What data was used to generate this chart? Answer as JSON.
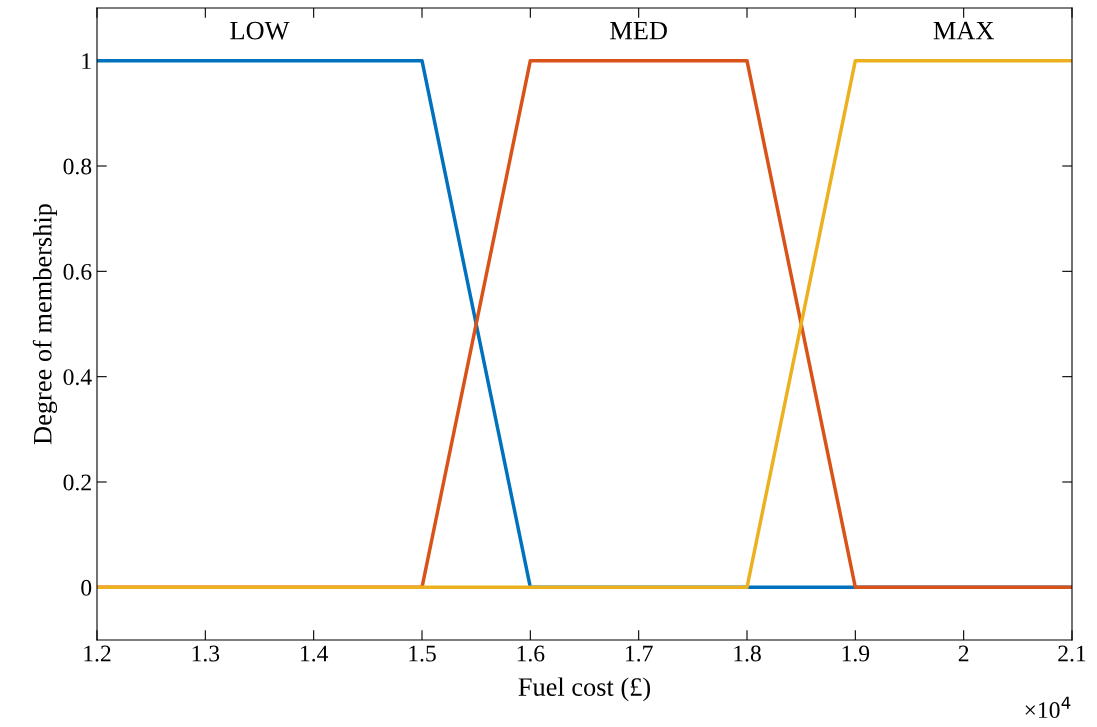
{
  "chart_data": {
    "type": "line",
    "xlabel": "Fuel cost (£)",
    "ylabel": "Degree of membership",
    "series": [
      {
        "name": "LOW",
        "color": "#0072bd",
        "x": [
          1.2,
          1.5,
          1.6,
          2.1
        ],
        "values": [
          1,
          1,
          0,
          0
        ]
      },
      {
        "name": "MED",
        "color": "#d95319",
        "x": [
          1.2,
          1.5,
          1.6,
          1.8,
          1.9,
          2.1
        ],
        "values": [
          0,
          0,
          1,
          1,
          0,
          0
        ]
      },
      {
        "name": "MAX",
        "color": "#edb120",
        "x": [
          1.2,
          1.8,
          1.9,
          2.1
        ],
        "values": [
          0,
          0,
          1,
          1
        ]
      }
    ],
    "annotations": [
      "×10$^{4}$"
    ],
    "xlim": [
      1.2,
      2.1
    ],
    "xticks": [
      1.2,
      1.3,
      1.4,
      1.5,
      1.6,
      1.7,
      1.8,
      1.9,
      2,
      2.1
    ],
    "ylim": [
      -0.1,
      1.1
    ],
    "yticks": [
      0,
      0.2,
      0.4,
      0.6,
      0.8,
      1
    ],
    "grid": false,
    "legend": false,
    "marker": "none",
    "line_style": "solid"
  }
}
